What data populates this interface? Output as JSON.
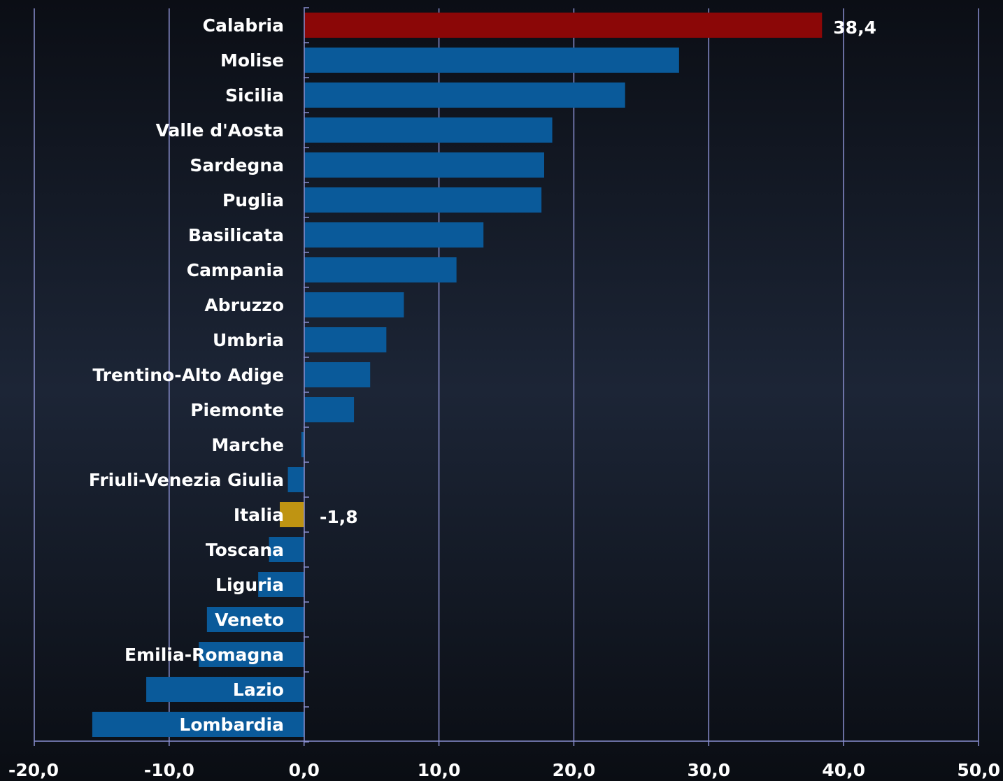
{
  "chart_data": {
    "type": "bar",
    "orientation": "horizontal",
    "categories": [
      "Calabria",
      "Molise",
      "Sicilia",
      "Valle d'Aosta",
      "Sardegna",
      "Puglia",
      "Basilicata",
      "Campania",
      "Abruzzo",
      "Umbria",
      "Trentino-Alto Adige",
      "Piemonte",
      "Marche",
      "Friuli-Venezia Giulia",
      "Italia",
      "Toscana",
      "Liguria",
      "Veneto",
      "Emilia-Romagna",
      "Lazio",
      "Lombardia"
    ],
    "values": [
      38.4,
      27.8,
      23.8,
      18.4,
      17.8,
      17.6,
      13.3,
      11.3,
      7.4,
      6.1,
      4.9,
      3.7,
      -0.2,
      -1.2,
      -1.8,
      -2.6,
      -3.4,
      -7.2,
      -7.8,
      -11.7,
      -15.7
    ],
    "highlight": {
      "Calabria": "#8b0707",
      "Italia": "#bf9412"
    },
    "data_labels": [
      {
        "category": "Calabria",
        "text": "38,4"
      },
      {
        "category": "Italia",
        "text": "-1,8"
      }
    ],
    "xlim": [
      -20,
      50
    ],
    "x_ticks": [
      -20,
      -10,
      0,
      10,
      20,
      30,
      40,
      50
    ],
    "x_tick_labels": [
      "-20,0",
      "-10,0",
      "0,0",
      "10,0",
      "20,0",
      "30,0",
      "40,0",
      "50,0"
    ],
    "grid": true,
    "legend": "none",
    "title": "",
    "xlabel": "",
    "ylabel": "",
    "colors": {
      "bar": "#0a5a9a",
      "gridline": "#8a8fd0",
      "text": "#ffffff"
    }
  }
}
